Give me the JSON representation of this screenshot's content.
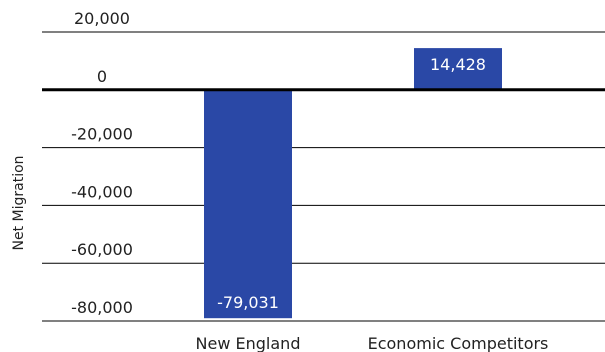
{
  "chart_data": {
    "type": "bar",
    "title": "",
    "xlabel": "",
    "ylabel": "Net Migration",
    "categories": [
      "New England",
      "Economic Competitors"
    ],
    "values": [
      -79031,
      14428
    ],
    "data_labels": [
      "-79,031",
      "14,428"
    ],
    "ylim": [
      -80000,
      20000
    ],
    "yticks": [
      20000,
      0,
      -20000,
      -40000,
      -60000,
      -80000
    ],
    "ytick_labels": [
      "20,000",
      "0",
      "-20,000",
      "-40,000",
      "-60,000",
      "-80,000"
    ],
    "grid": true,
    "legend": "none",
    "bar_color": "#2a48a6",
    "label_color": "#ffffff"
  }
}
